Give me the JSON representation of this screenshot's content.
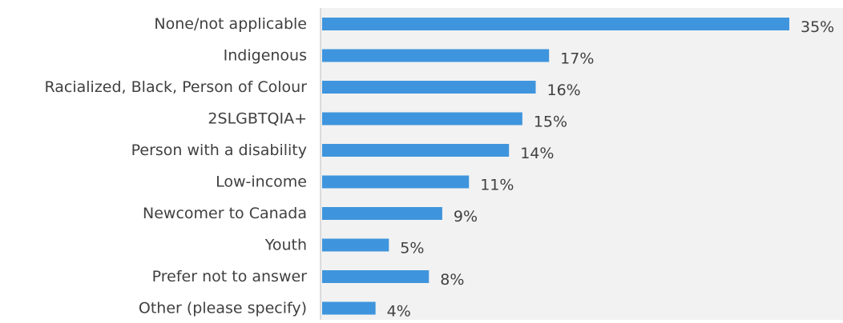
{
  "chart_data": {
    "type": "bar",
    "orientation": "horizontal",
    "categories": [
      "None/not applicable",
      "Indigenous",
      "Racialized, Black, Person of Colour",
      "2SLGBTQIA+",
      "Person with a disability",
      "Low-income",
      "Newcomer to Canada",
      "Youth",
      "Prefer not to answer",
      "Other (please specify)"
    ],
    "values": [
      35,
      17,
      16,
      15,
      14,
      11,
      9,
      5,
      8,
      4
    ],
    "value_labels": [
      "35%",
      "17%",
      "16%",
      "15%",
      "14%",
      "11%",
      "9%",
      "5%",
      "8%",
      "4%"
    ],
    "unit": "%",
    "xlim": [
      0,
      35
    ],
    "grid": false,
    "legend": "none",
    "title": "",
    "xlabel": "",
    "ylabel": "",
    "colors": {
      "bar": "#3f95dd",
      "plot_background": "#f2f2f2",
      "axis_line": "#bfbfbf",
      "text": "#404040"
    }
  }
}
